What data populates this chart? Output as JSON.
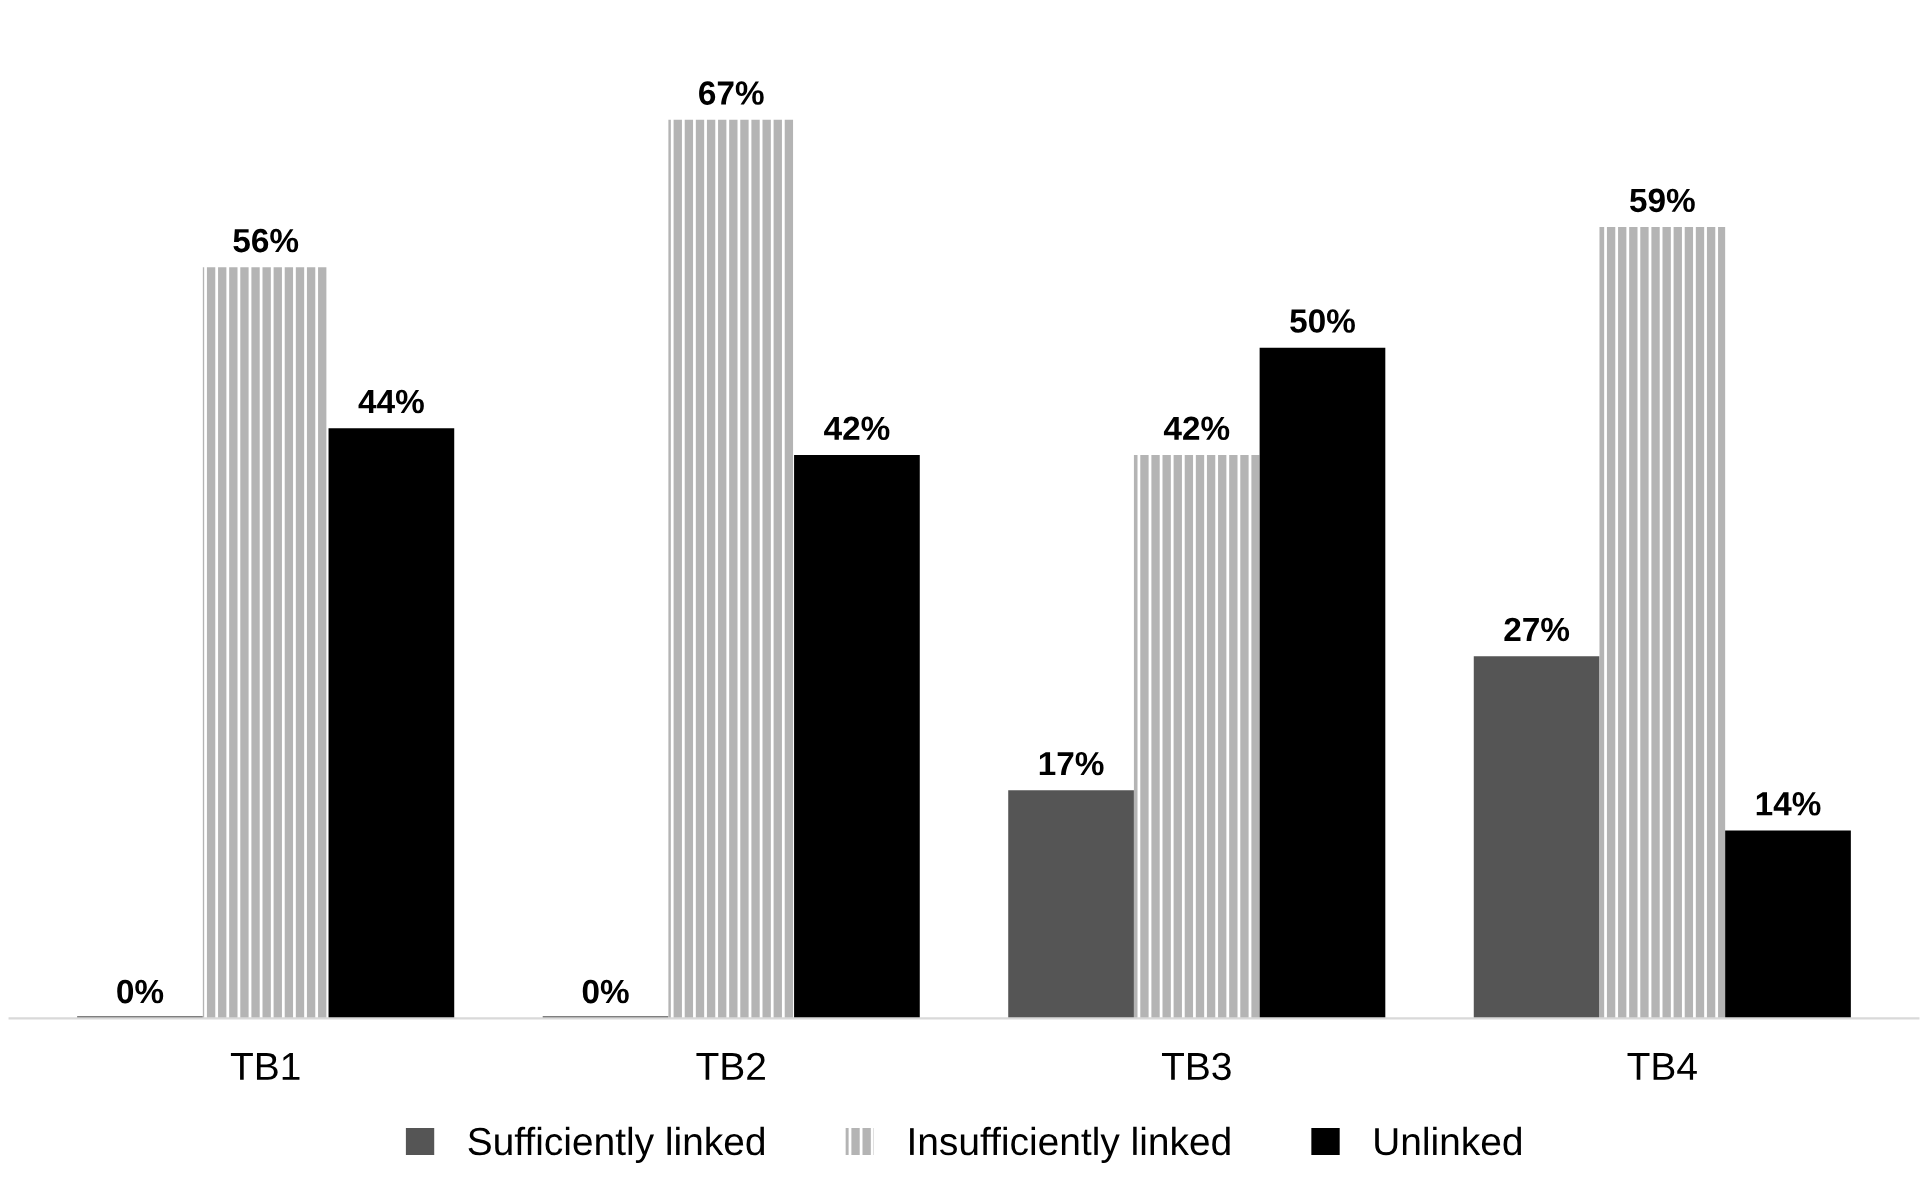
{
  "chart_data": {
    "type": "bar",
    "categories": [
      "TB1",
      "TB2",
      "TB3",
      "TB4"
    ],
    "series": [
      {
        "name": "Sufficiently linked",
        "color": "#555555",
        "values": [
          0,
          0,
          17,
          27
        ],
        "value_labels": [
          "0%",
          "0%",
          "17%",
          "27%"
        ]
      },
      {
        "name": "Insufficiently linked",
        "color": "#b4b4b4",
        "values": [
          56,
          67,
          42,
          59
        ],
        "value_labels": [
          "56%",
          "67%",
          "42%",
          "59%"
        ]
      },
      {
        "name": "Unlinked",
        "color": "#000000",
        "values": [
          44,
          42,
          50,
          14
        ],
        "value_labels": [
          "44%",
          "42%",
          "50%",
          "14%"
        ]
      }
    ],
    "legend": "bottom",
    "grid": false
  }
}
